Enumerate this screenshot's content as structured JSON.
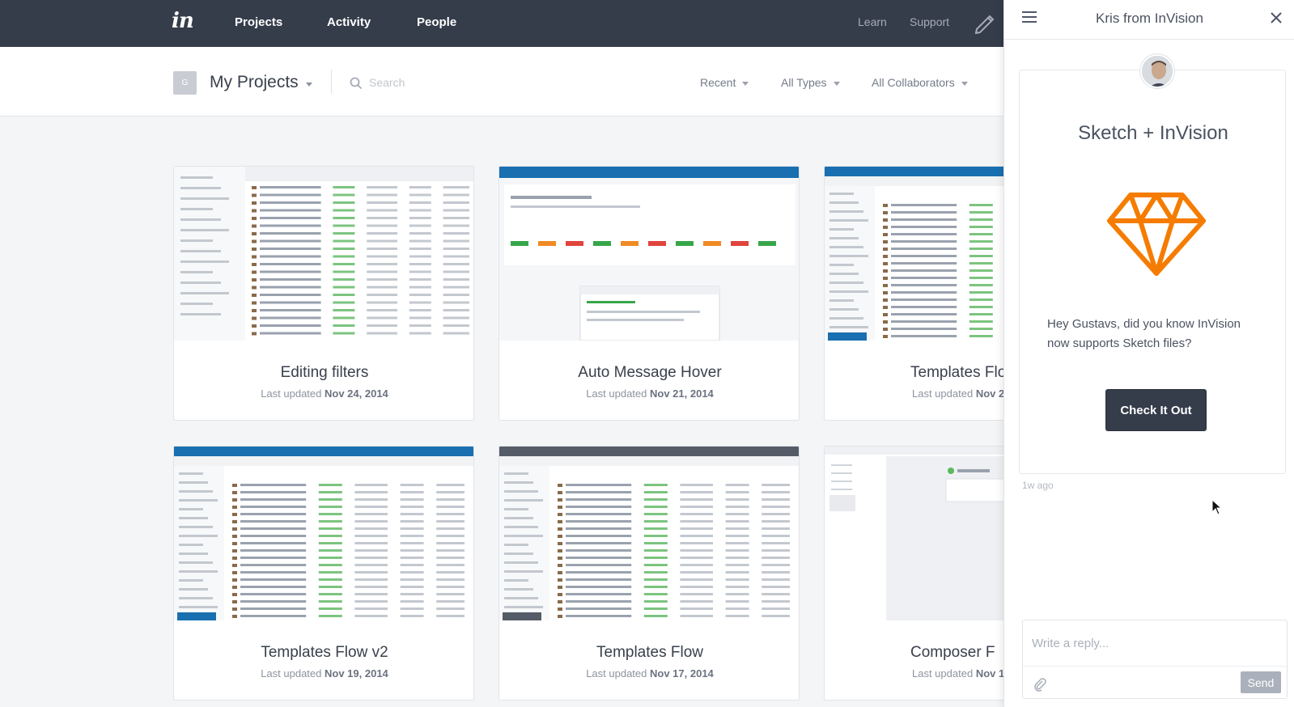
{
  "topnav": {
    "logo": "in",
    "items": [
      "Projects",
      "Activity",
      "People"
    ],
    "right_links": [
      "Learn",
      "Support"
    ]
  },
  "subheader": {
    "team_initial": "G",
    "title": "My Projects",
    "search_placeholder": "Search",
    "filters": [
      "Recent",
      "All Types",
      "All Collaborators"
    ]
  },
  "projects": [
    {
      "title": "Editing filters",
      "updated_prefix": "Last updated",
      "date": "Nov 24, 2014",
      "thumb": "filters"
    },
    {
      "title": "Auto Message Hover",
      "updated_prefix": "Last updated",
      "date": "Nov 21, 2014",
      "thumb": "message"
    },
    {
      "title": "Templates Flo",
      "updated_prefix": "Last updated",
      "date": "Nov 2",
      "thumb": "users-blue"
    },
    {
      "title": "Templates Flow v2",
      "updated_prefix": "Last updated",
      "date": "Nov 19, 2014",
      "thumb": "users-blue"
    },
    {
      "title": "Templates Flow",
      "updated_prefix": "Last updated",
      "date": "Nov 17, 2014",
      "thumb": "users-gray"
    },
    {
      "title": "Composer F",
      "updated_prefix": "Last updated",
      "date": "Nov 1",
      "thumb": "composer"
    }
  ],
  "chat": {
    "header_title": "Kris from InVision",
    "message_title": "Sketch + InVision",
    "message_body": "Hey Gustavs, did you know InVision now supports Sketch files?",
    "cta_label": "Check It Out",
    "timestamp": "1w ago",
    "reply_placeholder": "Write a reply...",
    "send_label": "Send"
  },
  "colors": {
    "nav_bg": "#353c4a",
    "sketch_orange": "#f57c00",
    "app_blue": "#1a6fb0"
  }
}
